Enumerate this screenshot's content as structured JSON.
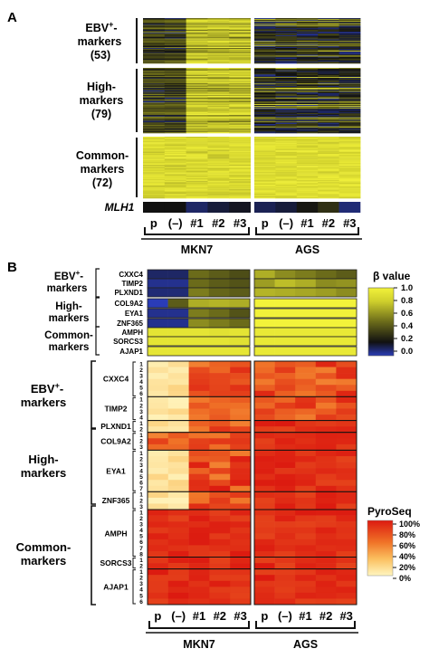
{
  "panel_a": {
    "label": "A",
    "groups": [
      {
        "line1": "EBV",
        "sup": "+",
        "line1_tail": "-",
        "line2": "markers",
        "line3": "(53)"
      },
      {
        "line1": "High-",
        "line2": "markers",
        "line3": "(79)"
      },
      {
        "line1": "Common-",
        "line2": "markers",
        "line3": "(72)"
      }
    ],
    "mlh1_label": "MLH1",
    "columns": [
      "p",
      "(–)",
      "#1",
      "#2",
      "#3",
      "p",
      "(–)",
      "#1",
      "#2",
      "#3"
    ],
    "cell_lines": [
      "MKN7",
      "AGS"
    ]
  },
  "panel_b": {
    "label": "B",
    "top_groups": [
      {
        "line1": "EBV",
        "sup": "+",
        "tail": "-",
        "line2": "markers",
        "genes": [
          "CXXC4",
          "TIMP2",
          "PLXND1"
        ]
      },
      {
        "line1": "High-",
        "line2": "markers",
        "genes": [
          "COL9A2",
          "EYA1",
          "ZNF365"
        ]
      },
      {
        "line1": "Common-",
        "line2": "markers",
        "genes": [
          "AMPH",
          "SORCS3",
          "AJAP1"
        ]
      }
    ],
    "beta_legend": {
      "title": "β value",
      "ticks": [
        "1.0",
        "0.8",
        "0.6",
        "0.4",
        "0.2",
        "0.0"
      ]
    },
    "bottom_groups": [
      {
        "line1": "EBV",
        "sup": "+",
        "tail": "-",
        "line2": "markers"
      },
      {
        "line1": "High-",
        "line2": "markers"
      },
      {
        "line1": "Common-",
        "line2": "markers"
      }
    ],
    "bottom_genes": [
      {
        "name": "CXXC4",
        "sites": [
          "1",
          "2",
          "3",
          "4",
          "5",
          "6"
        ]
      },
      {
        "name": "TIMP2",
        "sites": [
          "1",
          "2",
          "3",
          "4"
        ]
      },
      {
        "name": "PLXND1",
        "sites": [
          "1",
          "2"
        ]
      },
      {
        "name": "COL9A2",
        "sites": [
          "1",
          "2",
          "3"
        ]
      },
      {
        "name": "EYA1",
        "sites": [
          "1",
          "2",
          "3",
          "4",
          "5",
          "6",
          "7"
        ]
      },
      {
        "name": "ZNF365",
        "sites": [
          "1",
          "2",
          "3"
        ]
      },
      {
        "name": "AMPH",
        "sites": [
          "1",
          "2",
          "3",
          "4",
          "5",
          "6",
          "7",
          "8"
        ]
      },
      {
        "name": "SORCS3",
        "sites": [
          "1",
          "2"
        ]
      },
      {
        "name": "AJAP1",
        "sites": [
          "1",
          "2",
          "3",
          "4",
          "5",
          "6"
        ]
      }
    ],
    "pyro_legend": {
      "title": "PyroSeq",
      "ticks": [
        "100%",
        "80%",
        "60%",
        "40%",
        "20%",
        "0%"
      ]
    },
    "columns": [
      "p",
      "(–)",
      "#1",
      "#2",
      "#3",
      "p",
      "(–)",
      "#1",
      "#2",
      "#3"
    ],
    "cell_lines": [
      "MKN7",
      "AGS"
    ]
  },
  "colors": {
    "beta_scale": [
      "#3040b0",
      "#101010",
      "#8a8a20",
      "#e6e635"
    ],
    "pyro_scale": [
      "#fff3b0",
      "#f9a040",
      "#e02010"
    ]
  }
}
